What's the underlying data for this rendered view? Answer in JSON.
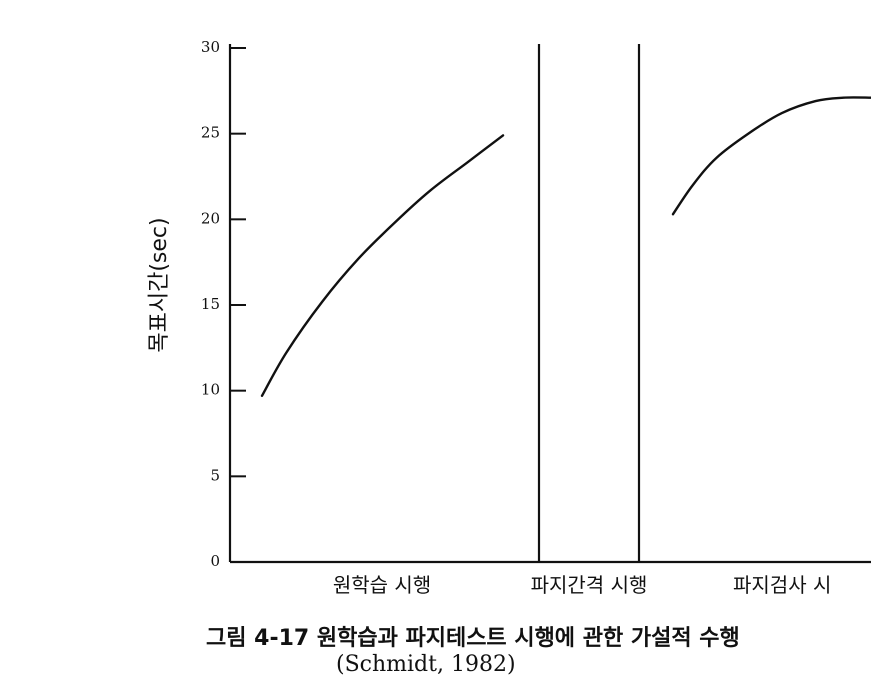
{
  "chart_data": {
    "type": "line",
    "ylabel": "목표시간(sec)",
    "ylim": [
      0,
      30
    ],
    "yticks": [
      0,
      5,
      10,
      15,
      20,
      25,
      30
    ],
    "categories": [
      "원학습 시행",
      "파지간격 시행",
      "파지검사 시"
    ],
    "series": [
      {
        "phase": "원학습 시행",
        "points": [
          [
            0.0,
            9.7
          ],
          [
            0.1,
            12.2
          ],
          [
            0.25,
            15.2
          ],
          [
            0.4,
            17.7
          ],
          [
            0.55,
            19.8
          ],
          [
            0.7,
            21.7
          ],
          [
            0.85,
            23.3
          ],
          [
            1.0,
            24.9
          ]
        ]
      },
      {
        "phase": "파지검사 시",
        "points": [
          [
            0.0,
            20.3
          ],
          [
            0.1,
            22.0
          ],
          [
            0.22,
            23.6
          ],
          [
            0.38,
            25.0
          ],
          [
            0.55,
            26.2
          ],
          [
            0.72,
            26.9
          ],
          [
            0.86,
            27.1
          ],
          [
            1.0,
            27.1
          ]
        ]
      }
    ],
    "grid": false,
    "legend": "none"
  },
  "figure": {
    "caption": "그림 4-17 원학습과 파지테스트 시행에 관한 가설적 수행",
    "citation": "(Schmidt, 1982)"
  }
}
